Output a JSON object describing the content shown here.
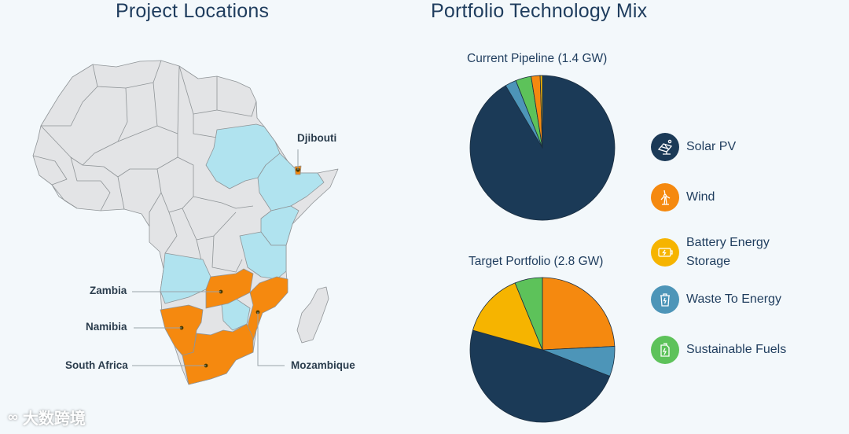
{
  "left_panel": {
    "title": "Project Locations",
    "labels": {
      "djibouti": "Djibouti",
      "zambia": "Zambia",
      "namibia": "Namibia",
      "south_africa": "South Africa",
      "mozambique": "Mozambique"
    }
  },
  "right_panel": {
    "title": "Portfolio Technology Mix"
  },
  "colors": {
    "solar": "#1b3a57",
    "wind": "#f5890f",
    "battery": "#f6b400",
    "waste": "#4d95b8",
    "fuels": "#5dc25a",
    "map_base": "#e3e4e6",
    "map_light": "#b0e3ef",
    "map_project": "#f5890f"
  },
  "legend": [
    {
      "key": "solar",
      "label": "Solar PV",
      "icon": "solar-panel-icon"
    },
    {
      "key": "wind",
      "label": "Wind",
      "icon": "wind-turbine-icon"
    },
    {
      "key": "battery",
      "label": "Battery Energy Storage",
      "icon": "battery-icon"
    },
    {
      "key": "waste",
      "label": "Waste To Energy",
      "icon": "waste-bin-icon"
    },
    {
      "key": "fuels",
      "label": "Sustainable Fuels",
      "icon": "fuel-can-icon"
    }
  ],
  "watermark": "大数跨境",
  "chart_data": [
    {
      "type": "pie",
      "title": "Current Pipeline (1.4 GW)",
      "categories": [
        "Solar PV",
        "Waste To Energy",
        "Sustainable Fuels",
        "Wind",
        "Battery Energy Storage"
      ],
      "values": [
        91.5,
        2.5,
        3.5,
        2.0,
        0.5
      ],
      "unit": "%"
    },
    {
      "type": "pie",
      "title": "Target Portfolio (2.8 GW)",
      "categories": [
        "Wind",
        "Waste To Energy",
        "Solar PV",
        "Battery Energy Storage",
        "Sustainable Fuels"
      ],
      "values": [
        23.5,
        6.5,
        47.0,
        14.0,
        6.0
      ],
      "unit": "%"
    }
  ]
}
